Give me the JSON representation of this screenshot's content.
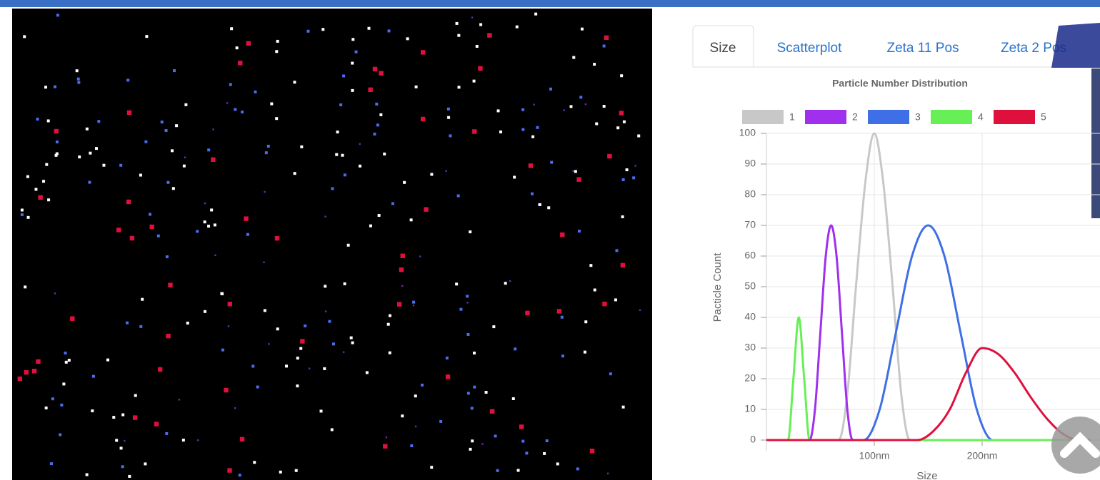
{
  "tabs": [
    "Size",
    "Scatterplot",
    "Zeta 11 Pos",
    "Zeta 2 Pos"
  ],
  "chart_data": {
    "type": "line",
    "title": "Particle Number Distribution",
    "x_label": "Size",
    "y_label": "Pacticle Count",
    "xlim": [
      0,
      300
    ],
    "xticks": [
      {
        "value": 100,
        "label": "100nm"
      },
      {
        "value": 200,
        "label": "200nm"
      }
    ],
    "ylim": [
      0,
      100
    ],
    "yticks": [
      0,
      10,
      20,
      30,
      40,
      50,
      60,
      70,
      80,
      90,
      100
    ],
    "grid": true,
    "legend": "top",
    "series": [
      {
        "name": "1",
        "color": "#c8c8c8",
        "x": [
          0,
          67,
          75,
          83,
          92,
          100,
          108,
          117,
          125,
          133,
          300
        ],
        "values": [
          0,
          0,
          15,
          50,
          85,
          100,
          85,
          50,
          15,
          0,
          0
        ]
      },
      {
        "name": "2",
        "color": "#a030ee",
        "x": [
          0,
          40,
          45,
          50,
          55,
          60,
          65,
          70,
          75,
          80,
          300
        ],
        "values": [
          0,
          0,
          10,
          35,
          60,
          70,
          60,
          35,
          10,
          0,
          0
        ]
      },
      {
        "name": "3",
        "color": "#3f6fe6",
        "x": [
          0,
          90,
          105,
          120,
          135,
          150,
          165,
          180,
          195,
          210,
          300
        ],
        "values": [
          0,
          0,
          10,
          35,
          60,
          70,
          60,
          35,
          10,
          0,
          0
        ]
      },
      {
        "name": "4",
        "color": "#66f055",
        "x": [
          0,
          20,
          25,
          30,
          35,
          40,
          300
        ],
        "values": [
          0,
          0,
          20,
          40,
          20,
          0,
          0
        ]
      },
      {
        "name": "5",
        "color": "#e0103c",
        "x": [
          0,
          140,
          155,
          170,
          185,
          200,
          215,
          230,
          245,
          260,
          275,
          290,
          300
        ],
        "values": [
          0,
          0,
          3,
          10,
          22,
          30,
          28,
          22,
          14,
          7,
          2,
          0,
          0
        ]
      }
    ]
  }
}
